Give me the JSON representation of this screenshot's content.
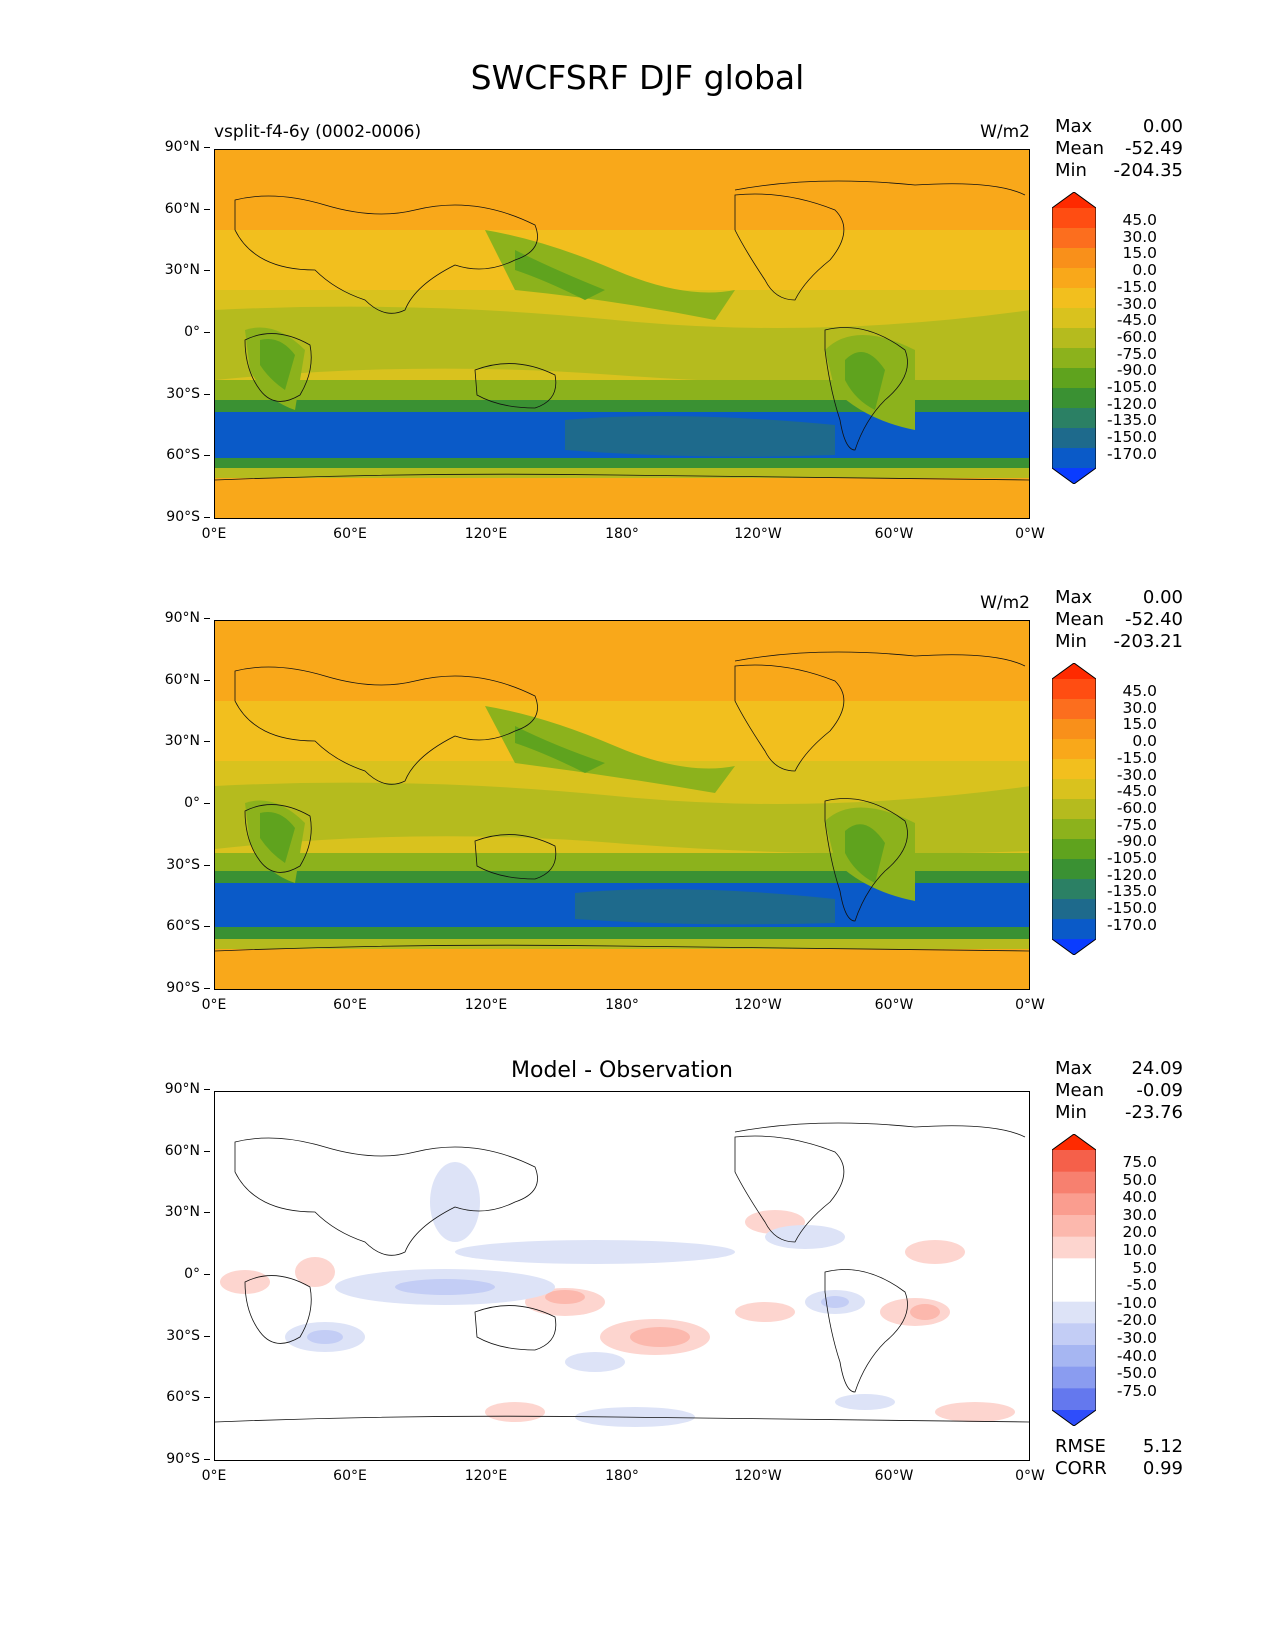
{
  "title": "SWCFSRF DJF global",
  "axes": {
    "lat_labels": [
      "90°N",
      "60°N",
      "30°N",
      "0°",
      "30°S",
      "60°S",
      "90°S"
    ],
    "lon_labels": [
      "0°E",
      "60°E",
      "120°E",
      "180°",
      "120°W",
      "60°W",
      "0°W"
    ]
  },
  "panels": [
    {
      "subtitle": "vsplit-f4-6y (0002-0006)",
      "units": "W/m2",
      "stats": {
        "max_label": "Max",
        "max": "0.00",
        "mean_label": "Mean",
        "mean": "-52.49",
        "min_label": "Min",
        "min": "-204.35"
      },
      "colorbar": [
        "45.0",
        "30.0",
        "15.0",
        "0.0",
        "-15.0",
        "-30.0",
        "-45.0",
        "-60.0",
        "-75.0",
        "-90.0",
        "-105.0",
        "-120.0",
        "-135.0",
        "-150.0",
        "-170.0"
      ]
    },
    {
      "subtitle": "",
      "units": "W/m2",
      "stats": {
        "max_label": "Max",
        "max": "0.00",
        "mean_label": "Mean",
        "mean": "-52.40",
        "min_label": "Min",
        "min": "-203.21"
      },
      "colorbar": [
        "45.0",
        "30.0",
        "15.0",
        "0.0",
        "-15.0",
        "-30.0",
        "-45.0",
        "-60.0",
        "-75.0",
        "-90.0",
        "-105.0",
        "-120.0",
        "-135.0",
        "-150.0",
        "-170.0"
      ]
    },
    {
      "subtitle": "Model - Observation",
      "stats": {
        "max_label": "Max",
        "max": "24.09",
        "mean_label": "Mean",
        "mean": "-0.09",
        "min_label": "Min",
        "min": "-23.76"
      },
      "colorbar": [
        "75.0",
        "50.0",
        "40.0",
        "30.0",
        "20.0",
        "10.0",
        "5.0",
        "-5.0",
        "-10.0",
        "-20.0",
        "-30.0",
        "-40.0",
        "-50.0",
        "-75.0"
      ],
      "metrics": {
        "rmse_label": "RMSE",
        "rmse": "5.12",
        "corr_label": "CORR",
        "corr": "0.99"
      }
    }
  ],
  "colors": {
    "field_scale": [
      "#ff2a00",
      "#ff4d12",
      "#fc6e1e",
      "#f9901a",
      "#f9a81a",
      "#f2bf1e",
      "#d9c21e",
      "#b5bb1e",
      "#8cb21c",
      "#5fa31e",
      "#3a9133",
      "#2b8064",
      "#1e6a8c",
      "#0a5ac8",
      "#0a3cff"
    ],
    "diff_scale": [
      "#ff2a00",
      "#f5604a",
      "#f7806f",
      "#fa9d8f",
      "#fcb8ad",
      "#fdd5cf",
      "#ffffff",
      "#ffffff",
      "#dde3f7",
      "#c3cdf5",
      "#a6b6f2",
      "#8a9cf0",
      "#6478ee",
      "#2e4dfb"
    ]
  }
}
